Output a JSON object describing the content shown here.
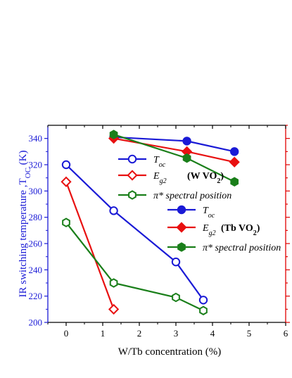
{
  "chart_data": {
    "type": "line",
    "xlabel": "W/Tb concentration (%)",
    "ylabel": "IR switching temperature ,T",
    "ylabel_sub": "OC",
    "ylabel_tail": " (K)",
    "xlim": [
      -0.5,
      6
    ],
    "ylim": [
      200,
      350
    ],
    "x_ticks": [
      0,
      1,
      2,
      3,
      4,
      5,
      6
    ],
    "y_ticks": [
      200,
      220,
      240,
      260,
      280,
      300,
      320,
      340
    ],
    "right_axis": {
      "color": "#e00000",
      "labels_shown": false
    },
    "grid": false,
    "legend": {
      "position": "top-right",
      "group_labels": {
        "w": "(W VO",
        "w_sub": "2",
        "w_tail": ")",
        "tb": "(Tb VO",
        "tb_sub": "2",
        "tb_tail": ")"
      }
    },
    "series": [
      {
        "name": "T",
        "name_sub": "oc",
        "group": "W",
        "color": "#1a1ad6",
        "marker": "circle",
        "filled": false,
        "x": [
          0,
          1.3,
          3.0,
          3.75
        ],
        "y": [
          320,
          285,
          246,
          217
        ]
      },
      {
        "name": "E",
        "name_sub": "g2",
        "group": "W",
        "color": "#e81010",
        "marker": "diamond",
        "filled": false,
        "x": [
          0,
          1.3
        ],
        "y": [
          307,
          210
        ]
      },
      {
        "name": "π* spectral position",
        "name_sub": "",
        "group": "W",
        "color": "#1a7f1a",
        "marker": "hexagon",
        "filled": false,
        "x": [
          0,
          1.3,
          3.0,
          3.75
        ],
        "y": [
          276,
          230,
          219,
          209
        ]
      },
      {
        "name": "T",
        "name_sub": "oc",
        "group": "Tb",
        "color": "#1a1ad6",
        "marker": "circle",
        "filled": true,
        "x": [
          1.3,
          3.3,
          4.6
        ],
        "y": [
          341,
          338,
          330
        ]
      },
      {
        "name": "E",
        "name_sub": "g2",
        "group": "Tb",
        "color": "#e81010",
        "marker": "diamond",
        "filled": true,
        "x": [
          1.3,
          3.3,
          4.6
        ],
        "y": [
          340,
          330,
          322
        ]
      },
      {
        "name": "π* spectral position",
        "name_sub": "",
        "group": "Tb",
        "color": "#1a7f1a",
        "marker": "hexagon",
        "filled": true,
        "x": [
          1.3,
          3.3,
          4.6
        ],
        "y": [
          343,
          325,
          307
        ]
      }
    ]
  }
}
